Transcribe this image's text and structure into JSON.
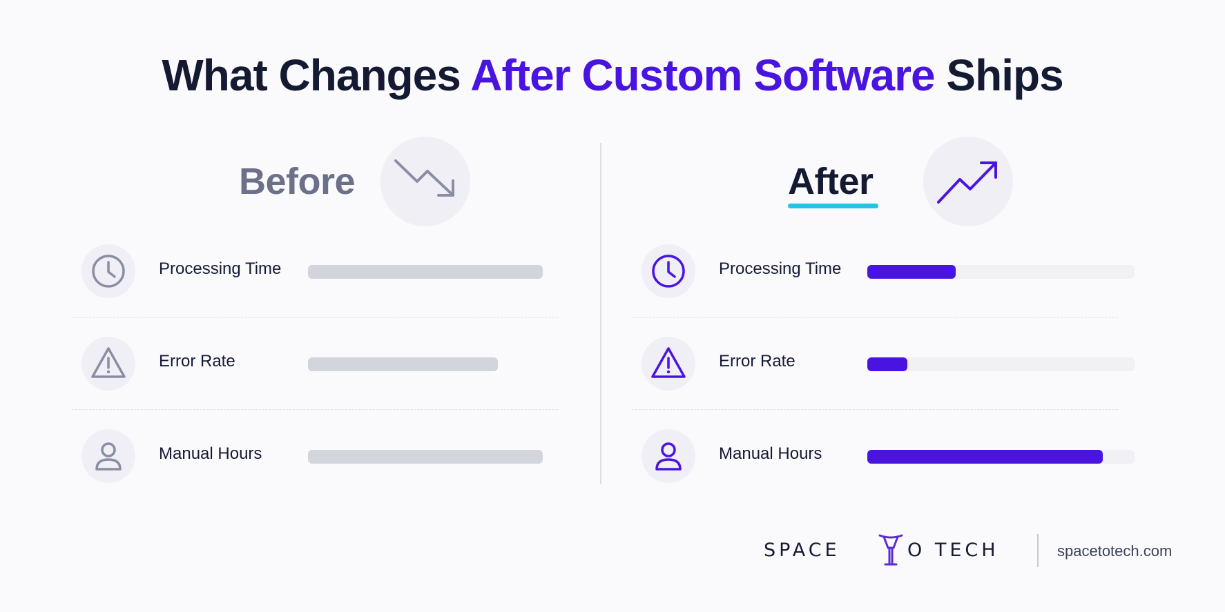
{
  "title": {
    "part1": "What Changes ",
    "accent": "After Custom Software",
    "part2": " Ships",
    "accent_color": "#4a14e0"
  },
  "panels": [
    {
      "key": "before",
      "title": "Before",
      "trend_icon": "trending-down-icon",
      "bar_color": "#d3d5dd",
      "icon_color": "#8a8ea3",
      "metrics": [
        {
          "label": "Processing Time",
          "icon": "clock-icon",
          "fill": 1.0
        },
        {
          "label": "Error Rate",
          "icon": "warning-triangle-icon",
          "fill": 0.81
        },
        {
          "label": "Manual Hours",
          "icon": "user-icon",
          "fill": 1.0
        }
      ]
    },
    {
      "key": "after",
      "title": "After",
      "trend_icon": "trending-up-icon",
      "bar_color": "#4a14e0",
      "icon_color": "#4a14e0",
      "underline_color": "#1fc6e6",
      "metrics": [
        {
          "label": "Processing Time",
          "icon": "clock-icon",
          "fill": 0.33
        },
        {
          "label": "Error Rate",
          "icon": "warning-triangle-icon",
          "fill": 0.15
        },
        {
          "label": "Manual Hours",
          "icon": "user-icon",
          "fill": 0.88
        }
      ]
    }
  ],
  "footer": {
    "brand_left": "SPACE",
    "brand_right": "O TECH",
    "url": "spacetotech.com"
  }
}
